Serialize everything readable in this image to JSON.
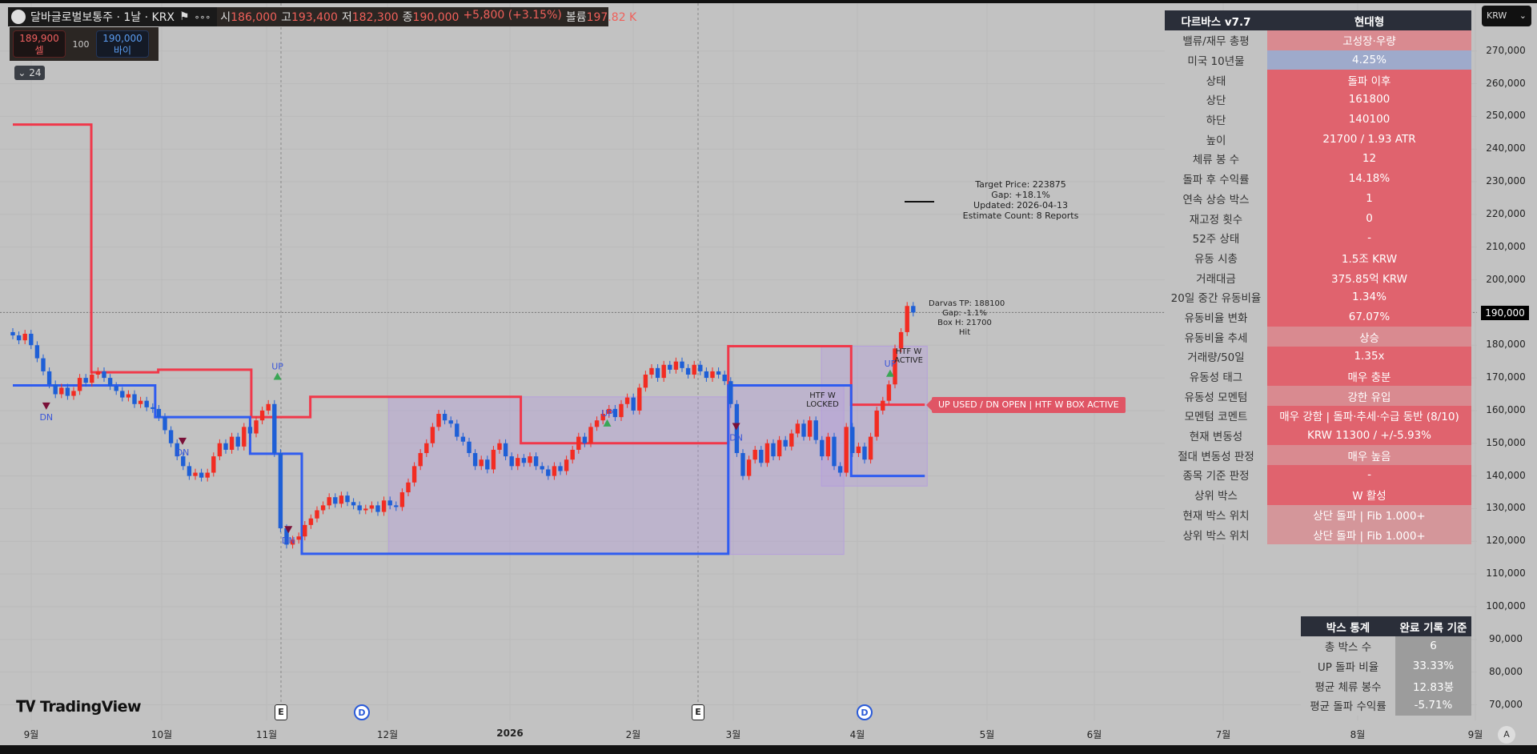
{
  "header": {
    "symbol": "달바글로벌보통주 · 1날 · KRX",
    "more": "∘∘∘",
    "open_label": "시",
    "open": "186,000",
    "high_label": "고",
    "high": "193,400",
    "low_label": "저",
    "low": "182,300",
    "close_label": "종",
    "close": "190,000",
    "change": "+5,800 (+3.15%)",
    "volume_label": "볼륨",
    "volume": "197.82 K"
  },
  "trade": {
    "sell_price": "189,900",
    "sell_label": "셀",
    "qty": "100",
    "buy_price": "190,000",
    "buy_label": "바이"
  },
  "indicators_toggle": "24",
  "currency": "KRW",
  "price_axis": {
    "ticks": [
      "270,000",
      "260,000",
      "250,000",
      "240,000",
      "230,000",
      "220,000",
      "210,000",
      "200,000",
      "180,000",
      "170,000",
      "160,000",
      "150,000",
      "140,000",
      "130,000",
      "120,000",
      "110,000",
      "100,000",
      "90,000",
      "80,000",
      "70,000"
    ],
    "last_price": "190,000"
  },
  "time_axis": [
    "9월",
    "10월",
    "11월",
    "12월",
    "2026",
    "2월",
    "3월",
    "4월",
    "5월",
    "6월",
    "7월",
    "8월",
    "9월"
  ],
  "darvas_table": {
    "title": "다르바스 v7.7",
    "mode": "현대형",
    "rows": [
      {
        "label": "밸류/재무 총평",
        "value": "고성장·우량",
        "color": "#d98a90"
      },
      {
        "label": "미국 10년물",
        "value": "4.25%",
        "color": "#9eaacb"
      },
      {
        "label": "상태",
        "value": "돌파 이후",
        "color": "#e0636e"
      },
      {
        "label": "상단",
        "value": "161800",
        "color": "#e0636e"
      },
      {
        "label": "하단",
        "value": "140100",
        "color": "#e0636e"
      },
      {
        "label": "높이",
        "value": "21700 / 1.93 ATR",
        "color": "#e0636e"
      },
      {
        "label": "체류 봉 수",
        "value": "12",
        "color": "#e0636e"
      },
      {
        "label": "돌파 후 수익률",
        "value": "14.18%",
        "color": "#e0636e"
      },
      {
        "label": "연속 상승 박스",
        "value": "1",
        "color": "#e0636e"
      },
      {
        "label": "재고정 횟수",
        "value": "0",
        "color": "#e0636e"
      },
      {
        "label": "52주 상태",
        "value": "-",
        "color": "#e0636e"
      },
      {
        "label": "유동 시총",
        "value": "1.5조 KRW",
        "color": "#e0636e"
      },
      {
        "label": "거래대금",
        "value": "375.85억 KRW",
        "color": "#e0636e"
      },
      {
        "label": "20일 중간 유동비율",
        "value": "1.34%",
        "color": "#e0636e"
      },
      {
        "label": "유동비율 변화",
        "value": "67.07%",
        "color": "#e0636e"
      },
      {
        "label": "유동비율 추세",
        "value": "상승",
        "color": "#d98a90"
      },
      {
        "label": "거래량/50일",
        "value": "1.35x",
        "color": "#e0636e"
      },
      {
        "label": "유동성 태그",
        "value": "매우 충분",
        "color": "#e0636e"
      },
      {
        "label": "유동성 모멘텀",
        "value": "강한 유입",
        "color": "#d98a90"
      },
      {
        "label": "모멘텀 코멘트",
        "value": "매우 강함 | 돌파·추세·수급 동반 (8/10)",
        "color": "#e0636e"
      },
      {
        "label": "현재 변동성",
        "value": "KRW 11300 / +/-5.93%",
        "color": "#e0636e"
      },
      {
        "label": "절대 변동성 판정",
        "value": "매우 높음",
        "color": "#d98a90"
      },
      {
        "label": "종목 기준 판정",
        "value": "-",
        "color": "#e0636e"
      },
      {
        "label": "상위 박스",
        "value": "W 활성",
        "color": "#e0636e"
      },
      {
        "label": "현재 박스 위치",
        "value": "상단 돌파 | Fib 1.000+",
        "color": "#d4969a"
      },
      {
        "label": "상위 박스 위치",
        "value": "상단 돌파 | Fib 1.000+",
        "color": "#d4969a"
      }
    ]
  },
  "box_stats": {
    "title": "박스 통계",
    "subtitle": "완료 기록 기준",
    "rows": [
      {
        "label": "총 박스 수",
        "value": "6"
      },
      {
        "label": "UP 돌파 비율",
        "value": "33.33%"
      },
      {
        "label": "평균 체류 봉수",
        "value": "12.83봉"
      },
      {
        "label": "평균 돌파 수익률",
        "value": "-5.71%"
      }
    ]
  },
  "target": {
    "line1": "Target Price: 223875",
    "line2": "Gap: +18.1%",
    "line3": "Updated: 2026-04-13",
    "line4": "Estimate Count: 8 Reports"
  },
  "darvas_tp": {
    "line1": "Darvas TP: 188100",
    "line2": "Gap: -1.1%",
    "line3": "Box H: 21700",
    "line4": "Hit"
  },
  "status_label": "UP USED / DN OPEN | HTF W BOX ACTIVE",
  "htf_locked": "HTF W\nLOCKED",
  "htf_active": "HTF W\nACTIVE",
  "events": {
    "earnings": "E",
    "dividend": "D"
  },
  "branding": "TradingView",
  "auto_scale": "A",
  "colors": {
    "up": "#f22c22",
    "down": "#1e5fd6",
    "upper_line": "#f0384a",
    "lower_line": "#2f5cf0",
    "box": "#b49ae0",
    "signal_up": "#3aa655",
    "signal_dn": "#7a1038"
  },
  "chart_data": {
    "type": "candlestick",
    "closes": [
      183000,
      181500,
      183500,
      180000,
      176000,
      172000,
      168000,
      165000,
      167000,
      164500,
      166000,
      170000,
      168500,
      171000,
      172000,
      170000,
      167500,
      166000,
      164000,
      165000,
      162000,
      163000,
      161000,
      160500,
      158000,
      154000,
      150000,
      146000,
      143000,
      140000,
      141000,
      139500,
      141000,
      146000,
      150000,
      148000,
      152000,
      149000,
      155000,
      153000,
      157000,
      160000,
      162000,
      147000,
      124000,
      119000,
      120500,
      121500,
      125000,
      127000,
      129500,
      131000,
      133500,
      131500,
      134000,
      132000,
      131000,
      129500,
      130000,
      131000,
      129000,
      132500,
      131000,
      130500,
      135000,
      138000,
      143000,
      147000,
      150000,
      155000,
      159000,
      157000,
      156000,
      152000,
      150500,
      147000,
      143000,
      145000,
      142000,
      148000,
      150000,
      146000,
      143000,
      145500,
      144000,
      146000,
      143000,
      142000,
      140000,
      143000,
      141500,
      145000,
      148000,
      152000,
      150000,
      155000,
      157000,
      159000,
      160500,
      158000,
      162000,
      164000,
      160000,
      167000,
      171000,
      173000,
      170000,
      174000,
      172500,
      175000,
      173000,
      171000,
      174000,
      172000,
      170000,
      172000,
      171000,
      169000,
      162000,
      147000,
      140000,
      145000,
      148000,
      144000,
      150000,
      146000,
      151000,
      149000,
      153000,
      156000,
      152000,
      157000,
      151000,
      146000,
      152000,
      143000,
      141000,
      155000,
      147000,
      149000,
      145000,
      152000,
      160000,
      163000,
      168000,
      179000,
      184000,
      192000,
      190000
    ],
    "upper_line": [
      [
        0,
        247500
      ],
      [
        12.9,
        171700
      ],
      [
        23.9,
        172500
      ],
      [
        39.2,
        158000
      ],
      [
        48.9,
        164200
      ],
      [
        83.5,
        150000
      ],
      [
        117.6,
        179700
      ],
      [
        137.8,
        161800
      ],
      [
        149.9,
        null
      ]
    ],
    "lower_line": [
      [
        0,
        167700
      ],
      [
        23.4,
        158000
      ],
      [
        39,
        146800
      ],
      [
        47.5,
        116200
      ],
      [
        117.6,
        167700
      ],
      [
        137.8,
        140000
      ],
      [
        149.9,
        null
      ]
    ],
    "boxes": [
      [
        61.8,
        117.6,
        164200,
        116200
      ],
      [
        117.9,
        136.6,
        167700,
        116000
      ],
      [
        132.9,
        150.3,
        179700,
        136900
      ]
    ],
    "signals": [
      {
        "type": "DN",
        "index": 5.5,
        "price": 161500
      },
      {
        "type": "DN",
        "index": 27.9,
        "price": 150700
      },
      {
        "type": "DN",
        "index": 45.3,
        "price": 123700
      },
      {
        "type": "UP",
        "index": 43.5,
        "price": 170400
      },
      {
        "type": "UP",
        "index": 97.7,
        "price": 156100
      },
      {
        "type": "DN",
        "index": 118.9,
        "price": 155200
      },
      {
        "type": "UP",
        "index": 144.2,
        "price": 171300
      }
    ]
  }
}
